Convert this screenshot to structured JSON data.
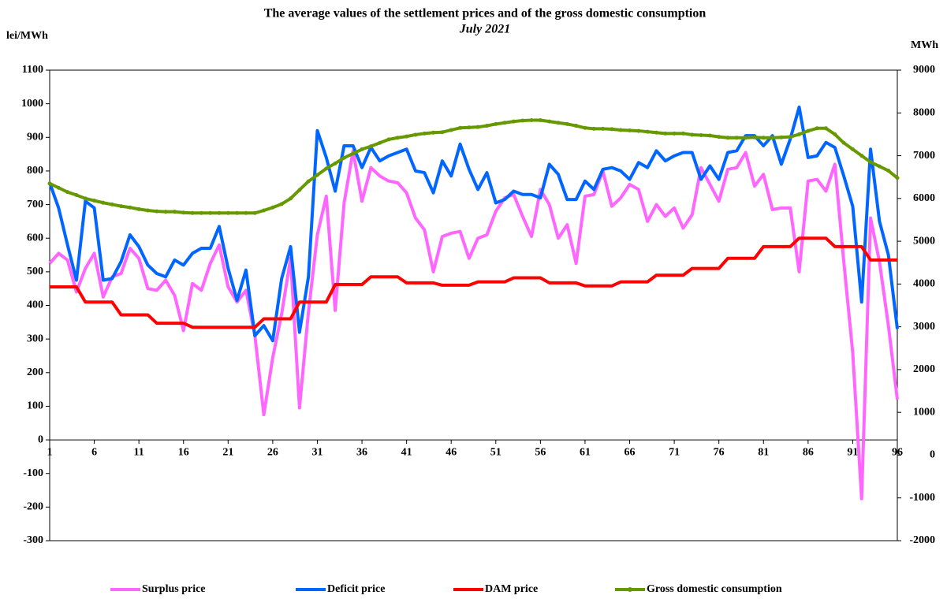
{
  "chart_data": {
    "type": "line",
    "title": "The average values of the settlement prices and of the gross domestic consumption",
    "subtitle": "July 2021",
    "y_label": "lei/MWh",
    "y2_label": "MWh",
    "x": [
      1,
      2,
      3,
      4,
      5,
      6,
      7,
      8,
      9,
      10,
      11,
      12,
      13,
      14,
      15,
      16,
      17,
      18,
      19,
      20,
      21,
      22,
      23,
      24,
      25,
      26,
      27,
      28,
      29,
      30,
      31,
      32,
      33,
      34,
      35,
      36,
      37,
      38,
      39,
      40,
      41,
      42,
      43,
      44,
      45,
      46,
      47,
      48,
      49,
      50,
      51,
      52,
      53,
      54,
      55,
      56,
      57,
      58,
      59,
      60,
      61,
      62,
      63,
      64,
      65,
      66,
      67,
      68,
      69,
      70,
      71,
      72,
      73,
      74,
      75,
      76,
      77,
      78,
      79,
      80,
      81,
      82,
      83,
      84,
      85,
      86,
      87,
      88,
      89,
      90,
      91,
      92,
      93,
      94,
      95,
      96
    ],
    "xlim": [
      1,
      96
    ],
    "xticks": [
      1,
      6,
      11,
      16,
      21,
      26,
      31,
      36,
      41,
      46,
      51,
      56,
      61,
      66,
      71,
      76,
      81,
      86,
      91,
      96
    ],
    "ylim": [
      -300,
      1100
    ],
    "yticks": [
      -300,
      -200,
      -100,
      0,
      100,
      200,
      300,
      400,
      500,
      600,
      700,
      800,
      900,
      1000,
      1100
    ],
    "y2lim": [
      -2000,
      9000
    ],
    "y2ticks": [
      -2000,
      -1000,
      0,
      1000,
      2000,
      3000,
      4000,
      5000,
      6000,
      7000,
      8000,
      9000
    ],
    "series": [
      {
        "name": "Surplus price",
        "color": "#ff66ff",
        "values": [
          525,
          555,
          535,
          440,
          510,
          555,
          425,
          485,
          495,
          570,
          540,
          450,
          445,
          475,
          430,
          325,
          465,
          445,
          525,
          580,
          455,
          410,
          445,
          310,
          75,
          245,
          375,
          540,
          95,
          380,
          610,
          725,
          385,
          705,
          860,
          710,
          810,
          785,
          770,
          765,
          735,
          660,
          625,
          500,
          605,
          615,
          620,
          540,
          600,
          610,
          680,
          720,
          730,
          665,
          605,
          745,
          700,
          600,
          640,
          525,
          725,
          730,
          800,
          695,
          720,
          760,
          745,
          650,
          700,
          665,
          690,
          630,
          670,
          810,
          760,
          710,
          805,
          810,
          855,
          755,
          790,
          685,
          690,
          690,
          500,
          770,
          775,
          740,
          820,
          530,
          260,
          -175,
          660,
          530,
          340,
          120
        ]
      },
      {
        "name": "Deficit price",
        "color": "#0066ff",
        "values": [
          765,
          690,
          580,
          475,
          710,
          690,
          475,
          480,
          530,
          610,
          575,
          520,
          495,
          485,
          535,
          520,
          555,
          570,
          570,
          635,
          510,
          415,
          505,
          310,
          340,
          295,
          480,
          575,
          320,
          485,
          920,
          840,
          740,
          875,
          875,
          810,
          870,
          830,
          845,
          855,
          865,
          800,
          795,
          735,
          830,
          785,
          880,
          805,
          745,
          795,
          705,
          715,
          740,
          730,
          730,
          720,
          820,
          790,
          715,
          715,
          770,
          745,
          805,
          810,
          800,
          775,
          825,
          810,
          860,
          830,
          845,
          855,
          855,
          775,
          815,
          775,
          855,
          860,
          905,
          905,
          875,
          905,
          820,
          895,
          990,
          840,
          845,
          885,
          870,
          785,
          695,
          410,
          865,
          650,
          550,
          330
        ]
      },
      {
        "name": "DAM price",
        "color": "#ff0000",
        "values": [
          455,
          455,
          455,
          455,
          410,
          410,
          410,
          410,
          372,
          372,
          372,
          372,
          347,
          347,
          347,
          347,
          335,
          335,
          335,
          335,
          335,
          335,
          335,
          335,
          360,
          360,
          360,
          360,
          410,
          410,
          410,
          410,
          462,
          462,
          462,
          462,
          485,
          485,
          485,
          485,
          467,
          467,
          467,
          467,
          460,
          460,
          460,
          460,
          470,
          470,
          470,
          470,
          482,
          482,
          482,
          482,
          467,
          467,
          467,
          467,
          458,
          458,
          458,
          458,
          470,
          470,
          470,
          470,
          490,
          490,
          490,
          490,
          510,
          510,
          510,
          510,
          540,
          540,
          540,
          540,
          575,
          575,
          575,
          575,
          600,
          600,
          600,
          600,
          575,
          575,
          575,
          575,
          535,
          535,
          535,
          535
        ]
      },
      {
        "name": "Gross domestic consumption",
        "color": "#669900",
        "axis": "y2",
        "values": [
          6350,
          6250,
          6150,
          6080,
          6000,
          5950,
          5900,
          5860,
          5820,
          5790,
          5750,
          5720,
          5700,
          5690,
          5690,
          5670,
          5660,
          5660,
          5660,
          5660,
          5660,
          5660,
          5660,
          5660,
          5720,
          5790,
          5870,
          6000,
          6200,
          6400,
          6550,
          6700,
          6820,
          6950,
          7050,
          7150,
          7220,
          7300,
          7380,
          7420,
          7450,
          7490,
          7520,
          7540,
          7550,
          7600,
          7650,
          7660,
          7670,
          7700,
          7740,
          7770,
          7800,
          7820,
          7830,
          7830,
          7800,
          7770,
          7740,
          7700,
          7650,
          7630,
          7630,
          7620,
          7600,
          7590,
          7580,
          7560,
          7540,
          7520,
          7520,
          7520,
          7490,
          7480,
          7470,
          7440,
          7420,
          7420,
          7420,
          7430,
          7420,
          7420,
          7430,
          7440,
          7500,
          7580,
          7640,
          7640,
          7500,
          7300,
          7150,
          7000,
          6850,
          6750,
          6650,
          6480
        ]
      }
    ]
  }
}
